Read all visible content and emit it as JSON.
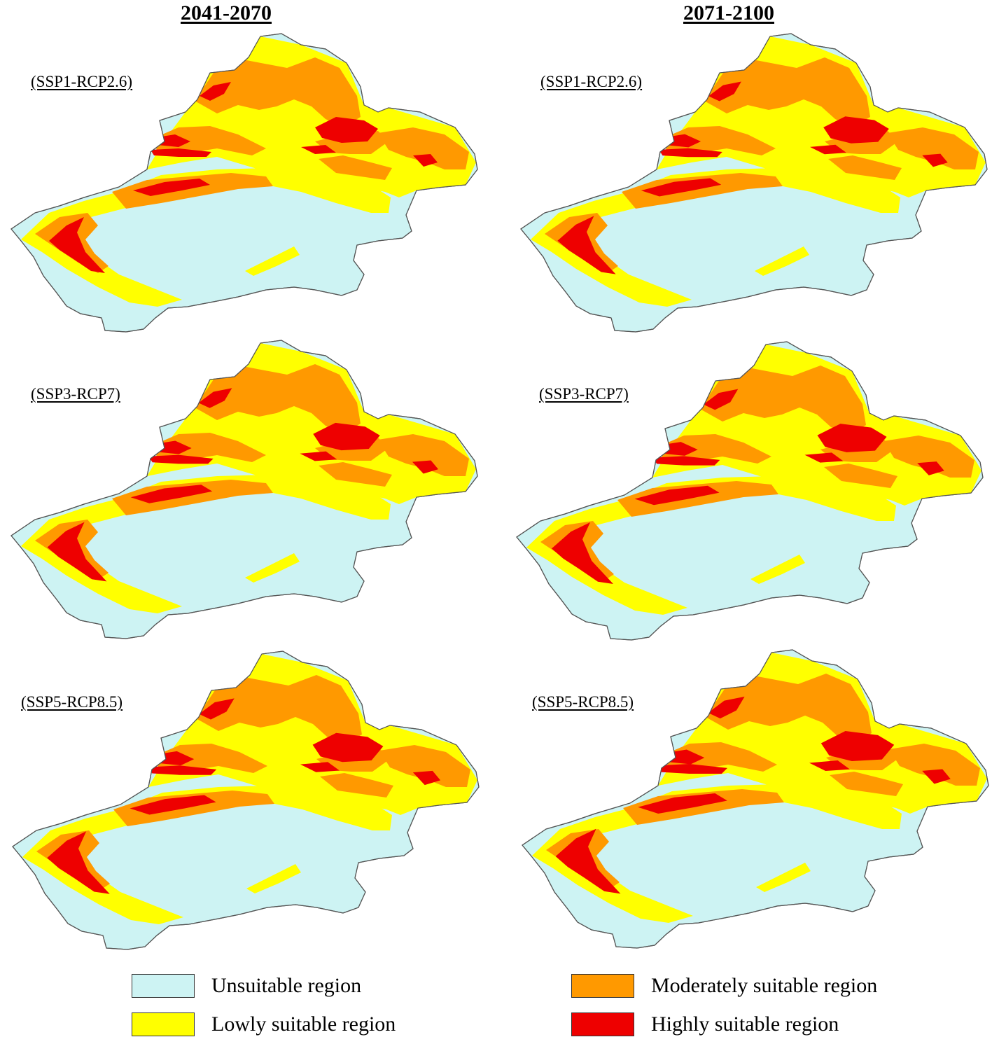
{
  "columns": [
    {
      "title": "2041-2070"
    },
    {
      "title": "2071-2100"
    }
  ],
  "scenarios": [
    "(SSP1-RCP2.6)",
    "(SSP3-RCP7)",
    "(SSP5-RCP8.5)"
  ],
  "colors": {
    "unsuitable": "#cdf3f3",
    "lowly": "#ffff00",
    "moderately": "#ff9900",
    "highly": "#ee0000",
    "outline": "#555555"
  },
  "legend": [
    {
      "label": "Unsuitable region",
      "color": "#cdf3f3"
    },
    {
      "label": "Lowly suitable region",
      "color": "#ffff00"
    },
    {
      "label": "Moderately suitable region",
      "color": "#ff9900"
    },
    {
      "label": "Highly suitable region",
      "color": "#ee0000"
    }
  ]
}
